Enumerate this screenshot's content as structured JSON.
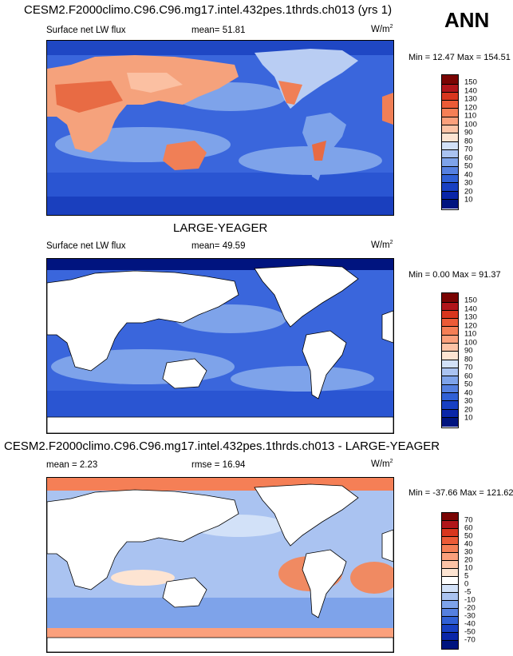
{
  "season": "ANN",
  "colors": {
    "ocean_cool": "#2d5ad8",
    "ocean_mid": "#6f98e8",
    "ocean_light": "#b9cdf3",
    "warm": "#f08a62",
    "hot": "#d93b1e",
    "land": "#ffffff"
  },
  "chart_data": [
    {
      "type": "heatmap",
      "title": "CESM2.F2000climo.C96.C96.mg17.intel.432pes.1thrds.ch013 (yrs 1)",
      "variable": "Surface net LW flux",
      "stat_label": "mean=",
      "stat_value": "51.81",
      "units": "W/m",
      "units_exp": "2",
      "min_label": "Min =",
      "min_value": "12.47",
      "max_label": "Max =",
      "max_value": "154.51",
      "colorbar_levels": [
        "150",
        "140",
        "130",
        "120",
        "110",
        "100",
        "90",
        "80",
        "70",
        "60",
        "50",
        "40",
        "30",
        "20",
        "10"
      ],
      "colorbar_colors": [
        "#7a0403",
        "#b0151a",
        "#d8361e",
        "#ec5b37",
        "#f57f56",
        "#fba07c",
        "#fdc3a6",
        "#fde4d2",
        "#d2e1f8",
        "#aac3f1",
        "#7ea3ea",
        "#5580e0",
        "#3060d5",
        "#1840c2",
        "#0a26a8",
        "#00147f"
      ]
    },
    {
      "type": "heatmap",
      "title": "LARGE-YEAGER",
      "variable": "Surface net LW flux",
      "stat_label": "mean=",
      "stat_value": "49.59",
      "units": "W/m",
      "units_exp": "2",
      "min_label": "Min =",
      "min_value": "0.00",
      "max_label": "Max =",
      "max_value": "91.37",
      "colorbar_levels": [
        "150",
        "140",
        "130",
        "120",
        "110",
        "100",
        "90",
        "80",
        "70",
        "60",
        "50",
        "40",
        "30",
        "20",
        "10"
      ],
      "colorbar_colors": [
        "#7a0403",
        "#b0151a",
        "#d8361e",
        "#ec5b37",
        "#f57f56",
        "#fba07c",
        "#fdc3a6",
        "#fde4d2",
        "#d2e1f8",
        "#aac3f1",
        "#7ea3ea",
        "#5580e0",
        "#3060d5",
        "#1840c2",
        "#0a26a8",
        "#00147f"
      ]
    },
    {
      "type": "heatmap",
      "title": "CESM2.F2000climo.C96.C96.mg17.intel.432pes.1thrds.ch013 - LARGE-YEAGER",
      "stat_label": "mean =",
      "stat_value": "2.23",
      "rmse_label": "rmse =",
      "rmse_value": "16.94",
      "units": "W/m",
      "units_exp": "2",
      "min_label": "Min =",
      "min_value": "-37.66",
      "max_label": "Max =",
      "max_value": "121.62",
      "colorbar_levels": [
        "70",
        "60",
        "50",
        "40",
        "30",
        "20",
        "10",
        "5",
        "0",
        "-5",
        "-10",
        "-20",
        "-30",
        "-40",
        "-50",
        "-70"
      ],
      "colorbar_colors": [
        "#7a0403",
        "#b0151a",
        "#d8361e",
        "#ec5b37",
        "#f57f56",
        "#fba07c",
        "#fdc3a6",
        "#fde4d2",
        "#ffffff",
        "#d2e1f8",
        "#aac3f1",
        "#7ea3ea",
        "#5580e0",
        "#3060d5",
        "#1840c2",
        "#0a26a8",
        "#00147f"
      ]
    }
  ]
}
